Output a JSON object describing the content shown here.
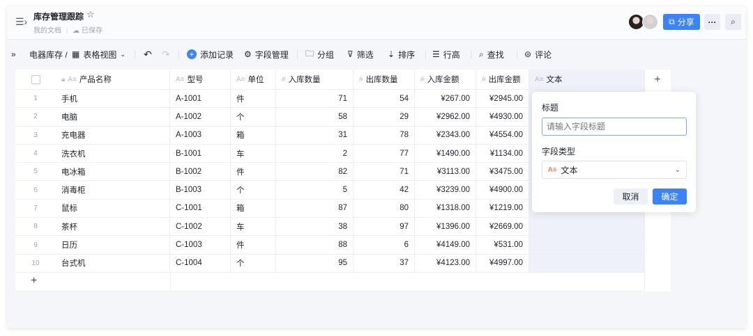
{
  "header": {
    "title": "库存管理跟踪",
    "breadcrumb": "我的文档",
    "saved": "已保存",
    "share_label": "分享"
  },
  "toolbar": {
    "table_name": "电器库存 /",
    "view": "表格视图",
    "add_record": "添加记录",
    "field_manage": "字段管理",
    "group": "分组",
    "filter": "筛选",
    "sort": "排序",
    "row_height": "行高",
    "find": "查找",
    "comment": "评论"
  },
  "table": {
    "columns": [
      "产品名称",
      "型号",
      "单位",
      "入库数量",
      "出库数量",
      "入库金额",
      "出库金额",
      "文本"
    ],
    "rows": [
      [
        "1",
        "手机",
        "A-1001",
        "件",
        "71",
        "54",
        "¥267.00",
        "¥2945.00"
      ],
      [
        "2",
        "电脑",
        "A-1002",
        "个",
        "58",
        "29",
        "¥2962.00",
        "¥4930.00"
      ],
      [
        "3",
        "充电器",
        "A-1003",
        "箱",
        "31",
        "78",
        "¥2343.00",
        "¥4554.00"
      ],
      [
        "4",
        "洗衣机",
        "B-1001",
        "车",
        "2",
        "77",
        "¥1490.00",
        "¥1134.00"
      ],
      [
        "5",
        "电冰箱",
        "B-1002",
        "件",
        "82",
        "71",
        "¥3113.00",
        "¥3475.00"
      ],
      [
        "6",
        "消毒柜",
        "B-1003",
        "个",
        "5",
        "42",
        "¥3239.00",
        "¥4900.00"
      ],
      [
        "7",
        "鼠标",
        "C-1001",
        "箱",
        "87",
        "80",
        "¥1318.00",
        "¥1219.00"
      ],
      [
        "8",
        "茶杯",
        "C-1002",
        "车",
        "38",
        "97",
        "¥1396.00",
        "¥2669.00"
      ],
      [
        "9",
        "日历",
        "C-1003",
        "件",
        "88",
        "6",
        "¥4149.00",
        "¥531.00"
      ],
      [
        "10",
        "台式机",
        "C-1004",
        "个",
        "95",
        "37",
        "¥4123.00",
        "¥4997.00"
      ]
    ]
  },
  "popover": {
    "title_label": "标题",
    "title_placeholder": "请输入字段标题",
    "type_label": "字段类型",
    "type_value": "文本",
    "cancel": "取消",
    "confirm": "确定"
  },
  "colors": {
    "accent": "#3c83f8",
    "text_type_icon": "#f0643c"
  }
}
